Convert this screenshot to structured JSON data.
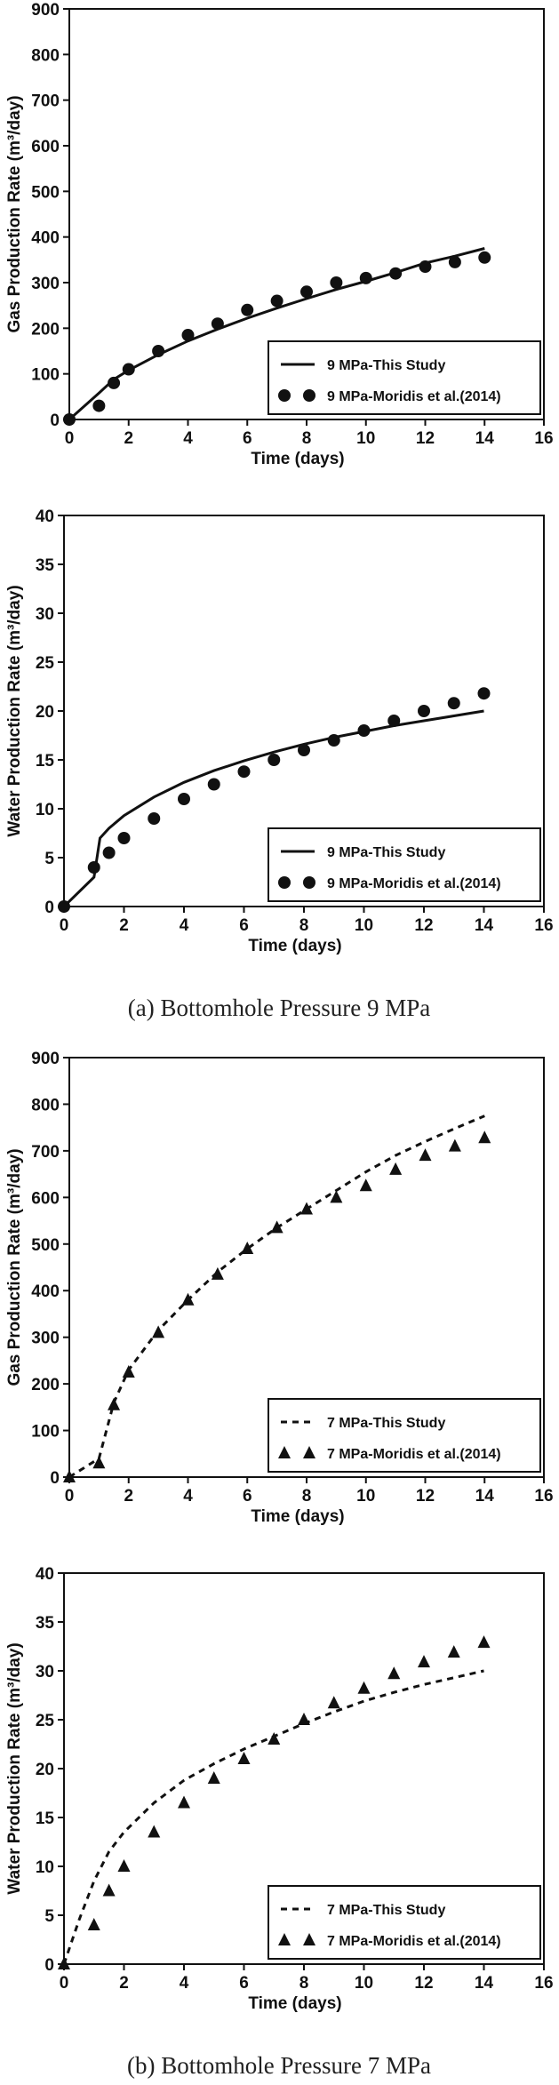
{
  "captions": [
    "(a) Bottomhole Pressure 9 MPa",
    "(b) Bottomhole Pressure 7 MPa"
  ],
  "chart_data": [
    {
      "type": "line",
      "xlabel": "Time (days)",
      "ylabel": "Gas Production Rate (m³/day)",
      "xlim": [
        0,
        16
      ],
      "ylim": [
        0,
        900
      ],
      "xticks": [
        "0",
        "2",
        "4",
        "6",
        "8",
        "10",
        "12",
        "14",
        "16"
      ],
      "yticks": [
        "0",
        "100",
        "200",
        "300",
        "400",
        "500",
        "600",
        "700",
        "800",
        "900"
      ],
      "grid": false,
      "legend_position": "bottom-right",
      "series": [
        {
          "name": "9 MPa-This Study",
          "style": "solid",
          "x": [
            0,
            1,
            1.5,
            2,
            3,
            4,
            5,
            6,
            7,
            8,
            9,
            10,
            11,
            12,
            13,
            14
          ],
          "y": [
            0,
            58,
            88,
            108,
            142,
            172,
            198,
            222,
            244,
            265,
            285,
            303,
            322,
            343,
            358,
            375
          ]
        },
        {
          "name": "9 MPa-Moridis et al.(2014)",
          "marker": "circle",
          "x": [
            0,
            1,
            1.5,
            2,
            3,
            4,
            5,
            6,
            7,
            8,
            9,
            10,
            11,
            12,
            13,
            14
          ],
          "y": [
            0,
            30,
            80,
            110,
            150,
            185,
            210,
            240,
            260,
            280,
            300,
            310,
            320,
            335,
            345,
            355
          ]
        }
      ]
    },
    {
      "type": "line",
      "xlabel": "Time (days)",
      "ylabel": "Water Production Rate (m³/day)",
      "xlim": [
        0,
        16
      ],
      "ylim": [
        0,
        40
      ],
      "xticks": [
        "0",
        "2",
        "4",
        "6",
        "8",
        "10",
        "12",
        "14",
        "16"
      ],
      "yticks": [
        "0",
        "5",
        "10",
        "15",
        "20",
        "25",
        "30",
        "35",
        "40"
      ],
      "grid": false,
      "legend_position": "bottom-right",
      "series": [
        {
          "name": "9 MPa-This Study",
          "style": "solid",
          "x": [
            0,
            1,
            1.2,
            1.5,
            2,
            3,
            4,
            5,
            6,
            7,
            8,
            9,
            10,
            11,
            12,
            13,
            14
          ],
          "y": [
            0,
            3,
            7,
            8,
            9.3,
            11.2,
            12.7,
            13.9,
            14.9,
            15.8,
            16.6,
            17.3,
            17.9,
            18.5,
            19,
            19.5,
            20
          ]
        },
        {
          "name": "9 MPa-Moridis et al.(2014)",
          "marker": "circle",
          "x": [
            0,
            1,
            1.5,
            2,
            3,
            4,
            5,
            6,
            7,
            8,
            9,
            10,
            11,
            12,
            13,
            14
          ],
          "y": [
            0,
            4,
            5.5,
            7,
            9,
            11,
            12.5,
            13.8,
            15,
            16,
            17,
            18,
            19,
            20,
            20.8,
            21.8
          ]
        }
      ]
    },
    {
      "type": "line",
      "xlabel": "Time (days)",
      "ylabel": "Gas Production Rate (m³/day)",
      "xlim": [
        0,
        16
      ],
      "ylim": [
        0,
        900
      ],
      "xticks": [
        "0",
        "2",
        "4",
        "6",
        "8",
        "10",
        "12",
        "14",
        "16"
      ],
      "yticks": [
        "0",
        "100",
        "200",
        "300",
        "400",
        "500",
        "600",
        "700",
        "800",
        "900"
      ],
      "grid": false,
      "legend_position": "bottom-right",
      "series": [
        {
          "name": "7 MPa-This Study",
          "style": "dashed",
          "x": [
            0,
            1,
            1.5,
            2,
            3,
            4,
            5,
            6,
            7,
            8,
            9,
            10,
            11,
            12,
            13,
            14
          ],
          "y": [
            0,
            40,
            160,
            230,
            315,
            380,
            440,
            490,
            535,
            575,
            615,
            655,
            690,
            720,
            748,
            775
          ]
        },
        {
          "name": "7 MPa-Moridis et al.(2014)",
          "marker": "triangle",
          "x": [
            0,
            1,
            1.5,
            2,
            3,
            4,
            5,
            6,
            7,
            8,
            9,
            10,
            11,
            12,
            13,
            14
          ],
          "y": [
            0,
            30,
            155,
            225,
            310,
            380,
            435,
            490,
            535,
            575,
            600,
            625,
            660,
            690,
            710,
            728
          ]
        }
      ]
    },
    {
      "type": "line",
      "xlabel": "Time (days)",
      "ylabel": "Water Production Rate (m³/day)",
      "xlim": [
        0,
        16
      ],
      "ylim": [
        0,
        40
      ],
      "xticks": [
        "0",
        "2",
        "4",
        "6",
        "8",
        "10",
        "12",
        "14",
        "16"
      ],
      "yticks": [
        "0",
        "5",
        "10",
        "15",
        "20",
        "25",
        "30",
        "35",
        "40"
      ],
      "grid": false,
      "legend_position": "bottom-right",
      "series": [
        {
          "name": "7 MPa-This Study",
          "style": "dashed",
          "x": [
            0,
            0.5,
            1,
            1.5,
            2,
            3,
            4,
            5,
            6,
            7,
            8,
            9,
            10,
            11,
            12,
            13,
            14
          ],
          "y": [
            0,
            4.5,
            8.5,
            11.5,
            13.5,
            16.5,
            18.8,
            20.5,
            22,
            23.3,
            24.6,
            25.8,
            26.9,
            27.8,
            28.6,
            29.3,
            30
          ]
        },
        {
          "name": "7 MPa-Moridis et al.(2014)",
          "marker": "triangle",
          "x": [
            0,
            1,
            1.5,
            2,
            3,
            4,
            5,
            6,
            7,
            8,
            9,
            10,
            11,
            12,
            13,
            14
          ],
          "y": [
            0,
            4,
            7.5,
            10,
            13.5,
            16.5,
            19,
            21,
            23,
            25,
            26.7,
            28.2,
            29.7,
            30.9,
            31.9,
            32.9
          ]
        }
      ]
    }
  ]
}
